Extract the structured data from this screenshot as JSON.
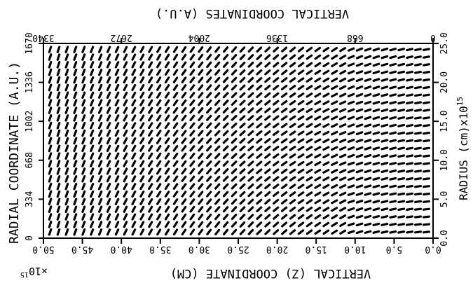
{
  "chart_data": {
    "type": "vector_field",
    "bottom_axis": {
      "label": "VERTICAL (Z) COORDINATE (CM)",
      "multiplier": "x10^15",
      "ticks": [
        "50.0",
        "45.0",
        "40.0",
        "35.0",
        "30.0",
        "25.0",
        "20.0",
        "15.0",
        "10.0",
        "5.0",
        "0.0"
      ],
      "range": [
        50,
        0
      ]
    },
    "top_axis": {
      "label": "VERTICAL COORDINATES (A.U.)",
      "ticks": [
        "3340",
        "2672",
        "2004",
        "1336",
        "668",
        "0"
      ]
    },
    "left_axis": {
      "label": "RADIAL COORDINATE (A.U.)",
      "ticks": [
        "0",
        "334",
        "668",
        "1002",
        "1336",
        "1670"
      ]
    },
    "right_axis": {
      "label": "RADIUS (cm)x10^15",
      "ticks": [
        "0.0",
        "5.0",
        "10.0",
        "15.0",
        "20.0",
        "25.0"
      ],
      "range": [
        0,
        25
      ]
    },
    "grid": {
      "columns": 46,
      "rows": 25
    },
    "field": "polarization vectors on a regular grid; mostly inclined, near-horizontal toward the right side"
  }
}
